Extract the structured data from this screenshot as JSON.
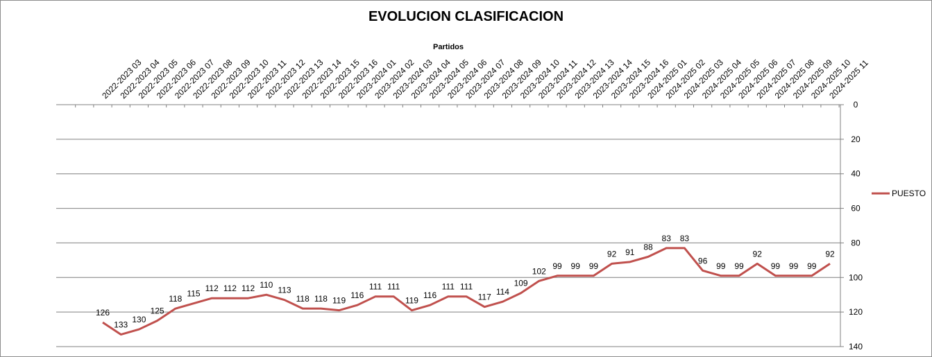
{
  "chart_data": {
    "type": "line",
    "title": "EVOLUCION CLASIFICACION",
    "xlabel": "Partidos",
    "ylabel": "",
    "categories": [
      "2022-2023 03",
      "2022-2023 04",
      "2022-2023 05",
      "2022-2023 06",
      "2022-2023 07",
      "2022-2023 08",
      "2022-2023 09",
      "2022-2023 10",
      "2022-2023 11",
      "2022-2023 12",
      "2022-2023 13",
      "2022-2023 14",
      "2022-2023 15",
      "2022-2023 16",
      "2023-2024 01",
      "2023-2024 02",
      "2023-2024 03",
      "2023-2024 04",
      "2023-2024 05",
      "2023-2024 06",
      "2023-2024 07",
      "2023-2024 08",
      "2023-2024 09",
      "2023-2024 10",
      "2023-2024 11",
      "2023-2024 12",
      "2023-2024 13",
      "2023-2024 14",
      "2023-2024 15",
      "2023-2024 16",
      "2024-2025 01",
      "2024-2025 02",
      "2024-2025 03",
      "2024-2025 04",
      "2024-2025 05",
      "2024-2025 06",
      "2024-2025 07",
      "2024-2025 08",
      "2024-2025 09",
      "2024-2025 10",
      "2024-2025 11"
    ],
    "series": [
      {
        "name": "PUESTO",
        "color": "#c0504d",
        "values": [
          126,
          133,
          130,
          125,
          118,
          115,
          112,
          112,
          112,
          110,
          113,
          118,
          118,
          119,
          116,
          111,
          111,
          119,
          116,
          111,
          111,
          117,
          114,
          109,
          102,
          99,
          99,
          99,
          92,
          91,
          88,
          83,
          83,
          96,
          99,
          99,
          92,
          99,
          99,
          99,
          92
        ]
      }
    ],
    "ylim": [
      0,
      140
    ],
    "y_ticks": [
      0,
      20,
      40,
      60,
      80,
      100,
      120,
      140
    ],
    "y_reversed": true,
    "y_axis_side": "right",
    "x_axis_position": "top",
    "grid": true,
    "legend_position": "right"
  }
}
